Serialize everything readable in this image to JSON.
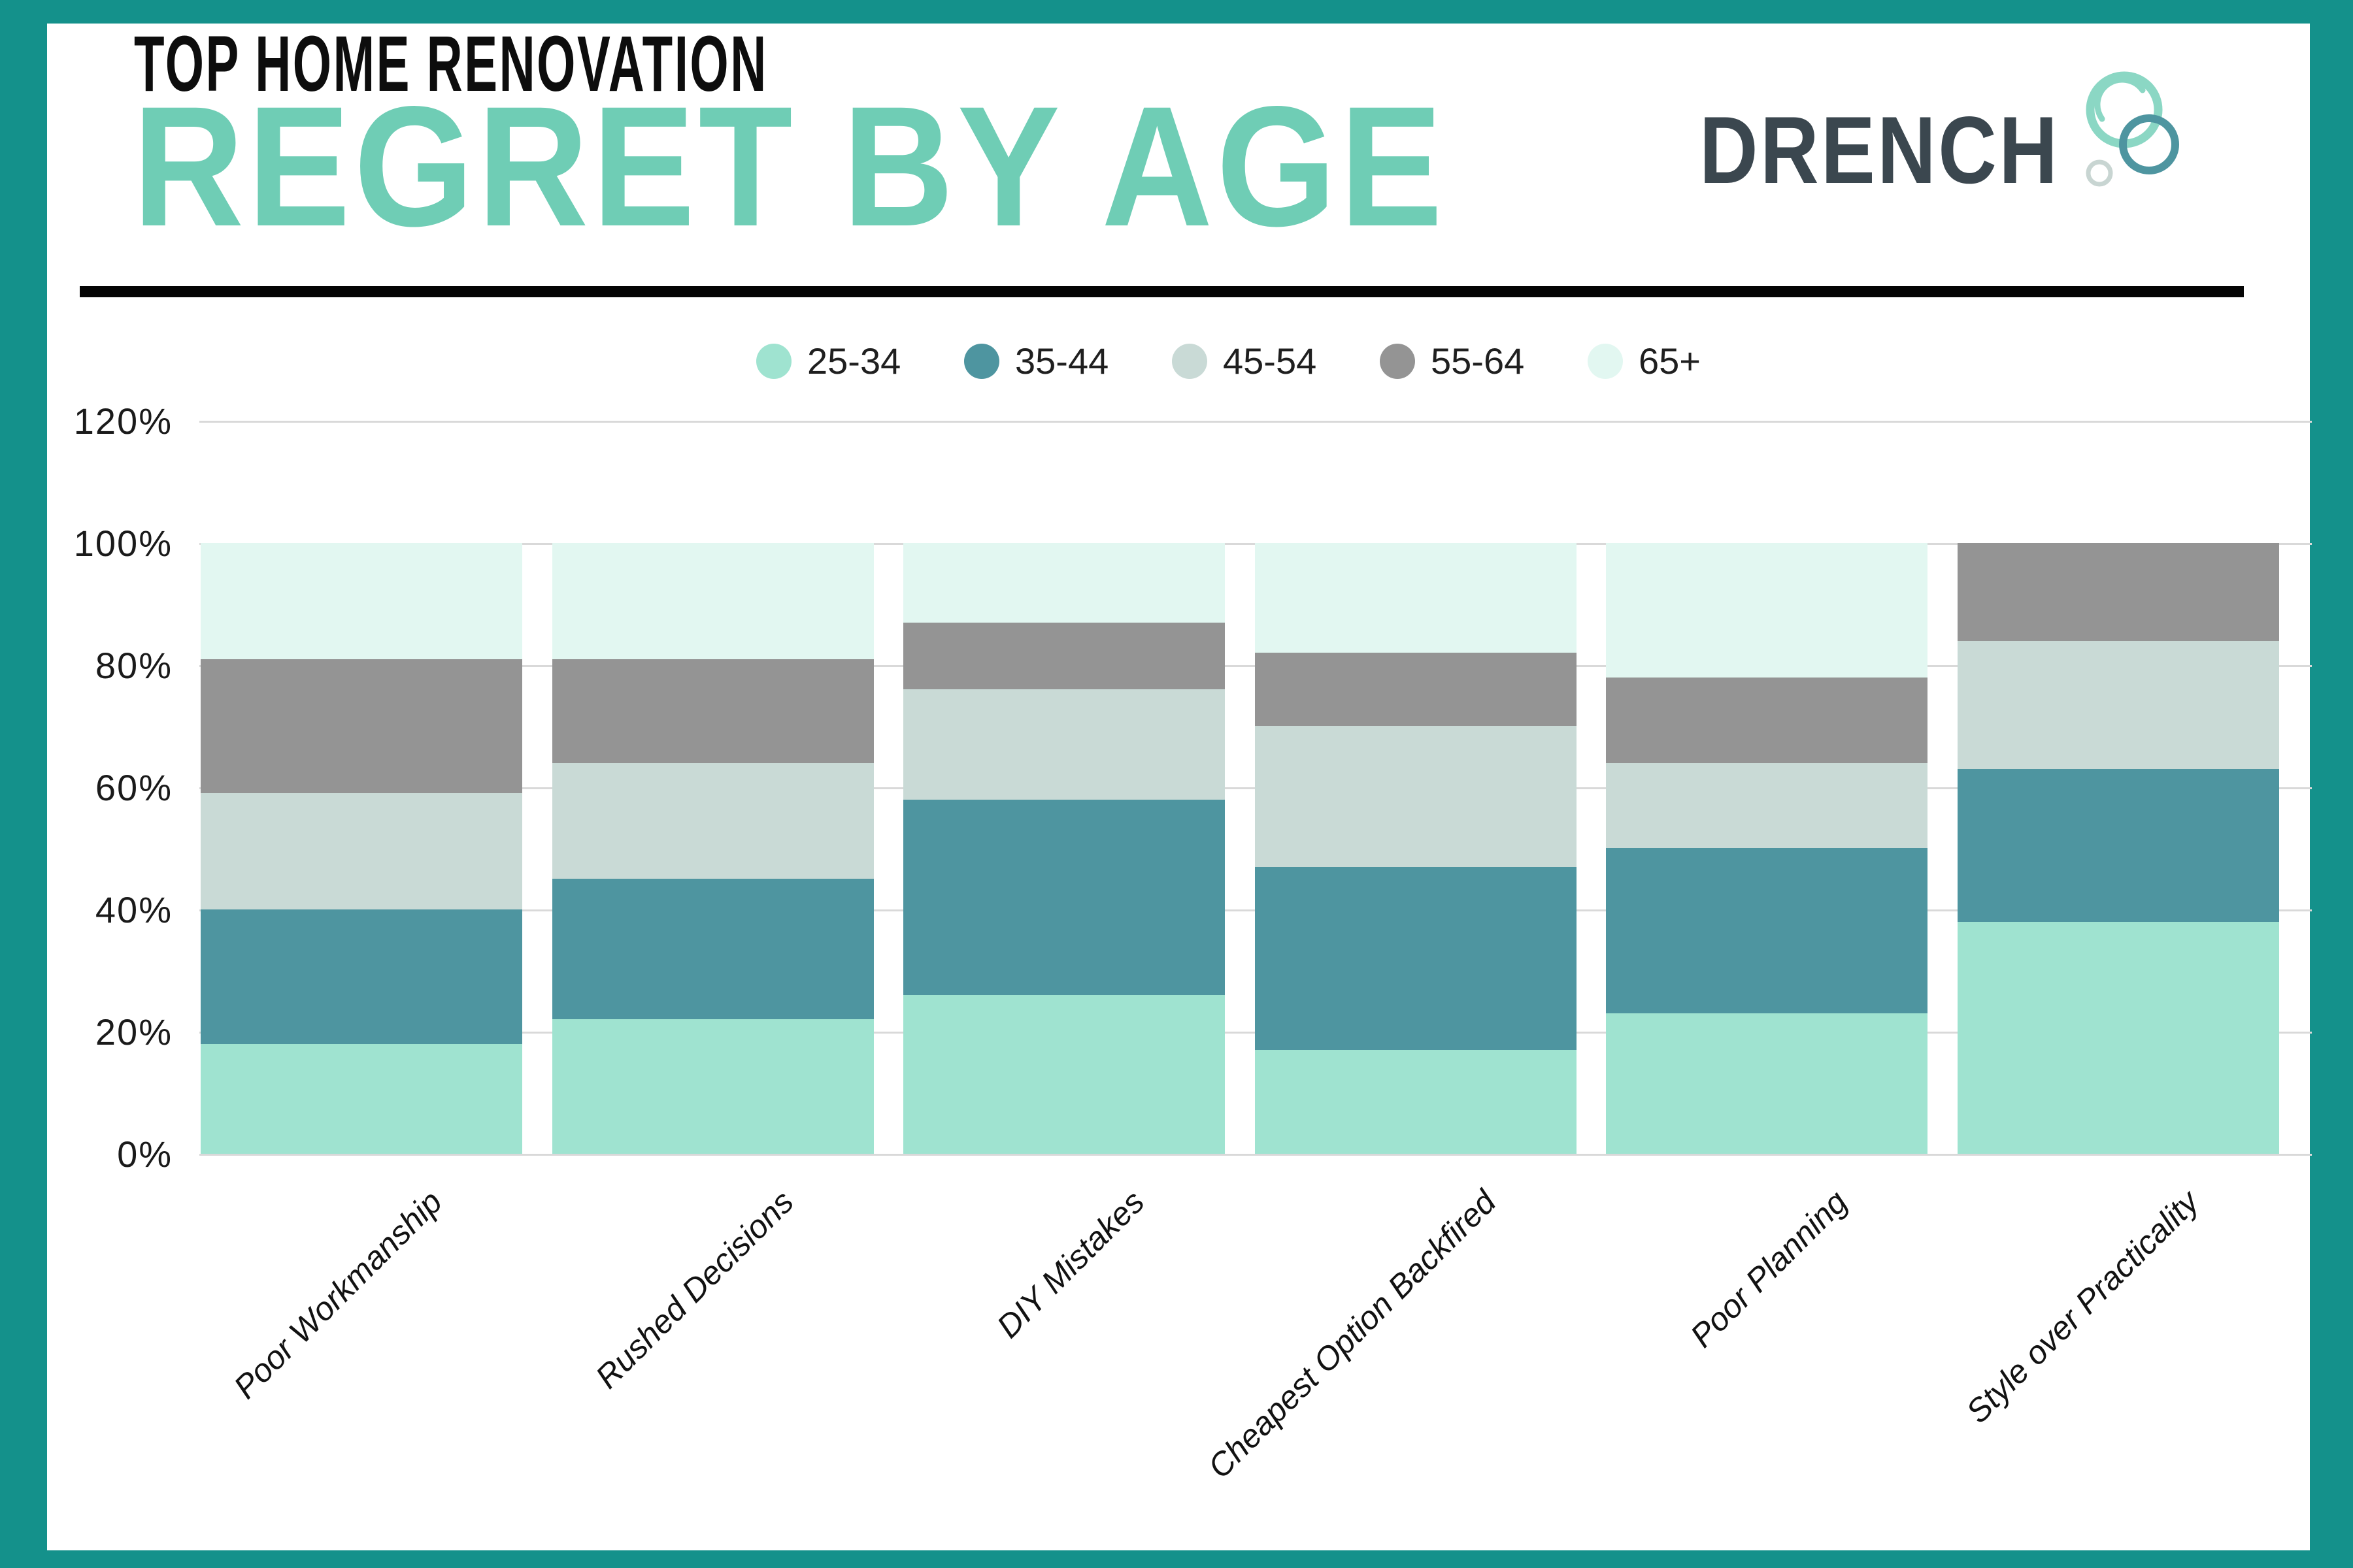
{
  "page": {
    "frame_color": "#14918B",
    "background": "#ffffff",
    "divider_color": "#050505"
  },
  "header": {
    "title_line1": "TOP HOME RENOVATION",
    "title_line2": "REGRET BY AGE",
    "title_line1_color": "#0d0d0d",
    "title_line2_color": "#6FCDB5",
    "logo": {
      "text": "DRENCH",
      "text_color": "#3B474F",
      "bubble_mint_color": "#8BD7C4",
      "bubble_teal_color": "#4E95A0",
      "bubble_gray_color": "#C8D5D2"
    }
  },
  "chart_data": {
    "type": "bar",
    "stacked": true,
    "stacked_unit": "%",
    "title": "Top Home Renovation Regret by Age",
    "categories": [
      "Poor Workmanship",
      "Rushed Decisions",
      "DIY Mistakes",
      "Cheapest Option Backfired",
      "Poor Planning",
      "Style over Practicality"
    ],
    "series": [
      {
        "name": "25-34",
        "color": "#9FE3D0",
        "values": [
          18,
          22,
          26,
          17,
          23,
          38
        ]
      },
      {
        "name": "35-44",
        "color": "#4E95A0",
        "values": [
          22,
          23,
          32,
          30,
          27,
          25
        ]
      },
      {
        "name": "45-54",
        "color": "#C9DAD6",
        "values": [
          19,
          19,
          18,
          23,
          14,
          21
        ]
      },
      {
        "name": "55-64",
        "color": "#949494",
        "values": [
          22,
          17,
          11,
          12,
          14,
          16
        ]
      },
      {
        "name": "65+",
        "color": "#E2F7F1",
        "values": [
          19,
          19,
          13,
          18,
          22,
          0
        ]
      }
    ],
    "xlabel": "",
    "ylabel": "",
    "y_ticks": [
      "0%",
      "20%",
      "40%",
      "60%",
      "80%",
      "100%",
      "120%"
    ],
    "ylim": [
      0,
      120
    ],
    "grid": true,
    "gridline_color": "#D9D9D9",
    "legend_position": "top"
  }
}
